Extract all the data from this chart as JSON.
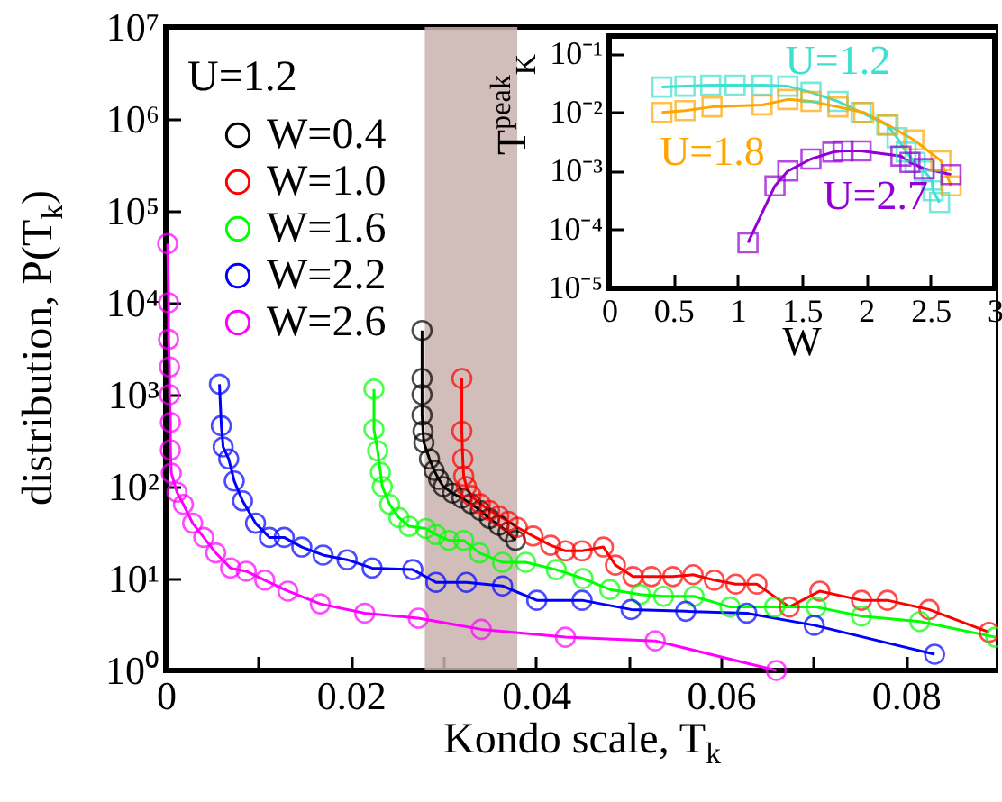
{
  "chart_data": [
    {
      "type": "line",
      "xlabel": "Kondo scale, T$_{k}$",
      "ylabel": "distribution, P(T$_{k}$)",
      "annotations": [
        "U=1.2"
      ],
      "xlim": [
        0,
        0.09
      ],
      "xticks": [
        0,
        {
          "value": 0.01,
          "label": null
        },
        0.02,
        {
          "value": 0.03,
          "label": null
        },
        0.04,
        {
          "value": 0.05,
          "label": null
        },
        0.06,
        {
          "value": 0.07,
          "label": null
        },
        0.08
      ],
      "ylim": [
        1,
        10000000
      ],
      "yticks": [
        {
          "value": 1,
          "label": "10⁰"
        },
        {
          "value": 10,
          "label": "10¹"
        },
        {
          "value": 100,
          "label": "10²"
        },
        {
          "value": 1000,
          "label": "10³"
        },
        {
          "value": 10000,
          "label": "10⁴"
        },
        {
          "value": 100000,
          "label": "10⁵"
        },
        {
          "value": 1000000,
          "label": "10⁶"
        },
        {
          "value": 10000000,
          "label": "10⁷"
        }
      ],
      "log": "y",
      "grid": false,
      "legend": "top left",
      "marker": "circle",
      "line_style": "solid",
      "bands": [
        {
          "axis": "x",
          "from": 0.028,
          "to": 0.038,
          "color": "#c9b1ad"
        }
      ],
      "series": [
        {
          "name": "W=0.4",
          "color": "#000000",
          "x": [
            0.0277,
            0.0277,
            0.0277,
            0.0277,
            0.0278,
            0.0279,
            0.0285,
            0.029,
            0.0295,
            0.03,
            0.031,
            0.032,
            0.033,
            0.034,
            0.035,
            0.036,
            0.037,
            0.0378
          ],
          "values": [
            5000,
            1500,
            1000,
            600,
            400,
            300,
            200,
            150,
            120,
            100,
            85,
            75,
            65,
            55,
            45,
            38,
            32,
            26
          ]
        },
        {
          "name": "W=1.0",
          "color": "#ff0000",
          "x": [
            0.032,
            0.032,
            0.0321,
            0.0322,
            0.0325,
            0.033,
            0.034,
            0.035,
            0.036,
            0.037,
            0.038,
            0.0397,
            0.0416,
            0.0432,
            0.045,
            0.0473,
            0.0486,
            0.0505,
            0.0525,
            0.0548,
            0.057,
            0.0593,
            0.0616,
            0.0639,
            0.0674,
            0.0707,
            0.0752,
            0.078,
            0.0825,
            0.089
          ],
          "values": [
            1500,
            400,
            200,
            130,
            100,
            80,
            65,
            55,
            48,
            42,
            36,
            29,
            23,
            20,
            20,
            22,
            14,
            10.5,
            10.5,
            10.5,
            11,
            9.6,
            8.7,
            8.7,
            4.9,
            7.3,
            5.8,
            5.8,
            4.6,
            2.6
          ]
        },
        {
          "name": "W=1.6",
          "color": "#00ff00",
          "x": [
            0.0225,
            0.0225,
            0.0229,
            0.0232,
            0.0234,
            0.0242,
            0.0252,
            0.0263,
            0.0281,
            0.0292,
            0.0306,
            0.0322,
            0.0339,
            0.0364,
            0.0389,
            0.0422,
            0.0451,
            0.048,
            0.0513,
            0.0538,
            0.0571,
            0.061,
            0.0658,
            0.0703,
            0.0752,
            0.0815,
            0.0897
          ],
          "values": [
            1150,
            420,
            245,
            143,
            100,
            64,
            46,
            37,
            35,
            30,
            26,
            26,
            19,
            15,
            15,
            12.5,
            10,
            7.6,
            6.7,
            6.4,
            6.4,
            4.9,
            4.9,
            4.9,
            3.9,
            3.4,
            2.3
          ]
        },
        {
          "name": "W=2.2",
          "color": "#0000ff",
          "x": [
            0.0058,
            0.006,
            0.0062,
            0.0068,
            0.0074,
            0.0083,
            0.0097,
            0.0112,
            0.0128,
            0.0147,
            0.017,
            0.0196,
            0.0223,
            0.0267,
            0.0292,
            0.0325,
            0.0364,
            0.0401,
            0.045,
            0.0503,
            0.0562,
            0.0628,
            0.0701,
            0.0831
          ],
          "values": [
            1300,
            460,
            270,
            200,
            115,
            70,
            40,
            28,
            28,
            22,
            18,
            16,
            13,
            12.5,
            9.1,
            9.1,
            8.3,
            5.8,
            5.8,
            4.6,
            4.4,
            4.2,
            3.1,
            1.5
          ]
        },
        {
          "name": "W=2.6",
          "color": "#ff00ff",
          "x": [
            0.0002,
            0.0003,
            0.0003,
            0.0004,
            0.0004,
            0.0005,
            0.0005,
            0.0006,
            0.0012,
            0.0019,
            0.0029,
            0.0041,
            0.0054,
            0.007,
            0.0087,
            0.0107,
            0.0132,
            0.0167,
            0.0215,
            0.0273,
            0.0341,
            0.0432,
            0.0529,
            0.066
          ],
          "values": [
            44000,
            10000,
            4000,
            2000,
            1000,
            500,
            250,
            140,
            87,
            64,
            40,
            28,
            19,
            13,
            12,
            9.6,
            7.3,
            5.3,
            4.2,
            3.7,
            2.8,
            2.3,
            2.1,
            1
          ]
        }
      ]
    },
    {
      "type": "line",
      "xlabel": "W",
      "ylabel": "T$^{peak}$$_{K}$",
      "xlim": [
        0,
        3
      ],
      "xticks": [
        0,
        0.5,
        1,
        1.5,
        2,
        2.5,
        3
      ],
      "ylim": [
        1e-05,
        0.2
      ],
      "yticks": [
        {
          "value": 1e-05,
          "label": "10⁻⁵"
        },
        {
          "value": 0.0001,
          "label": "10⁻⁴"
        },
        {
          "value": 0.001,
          "label": "10⁻³"
        },
        {
          "value": 0.01,
          "label": "10⁻²"
        },
        {
          "value": 0.1,
          "label": "10⁻¹"
        }
      ],
      "log": "y",
      "grid": false,
      "marker": "square",
      "line_style": "solid",
      "series": [
        {
          "name": "U=1.2",
          "color": "#40e0d0",
          "x": [
            0.41,
            0.59,
            0.79,
            0.98,
            1.19,
            1.39,
            1.57,
            1.78,
            1.96,
            2.16,
            2.24,
            2.31,
            2.38,
            2.45,
            2.51,
            2.52,
            2.57
          ],
          "values": [
            0.027,
            0.028,
            0.029,
            0.029,
            0.029,
            0.028,
            0.022,
            0.0154,
            0.01,
            0.0061,
            0.0037,
            0.0021,
            0.0014,
            0.001,
            0.0007,
            0.00046,
            0.00029
          ]
        },
        {
          "name": "U=1.8",
          "color": "#ffa500",
          "x": [
            0.41,
            0.59,
            0.8,
            1.19,
            1.39,
            1.57,
            1.78,
            1.98,
            2.17,
            2.37,
            2.58,
            2.66
          ],
          "values": [
            0.01,
            0.0107,
            0.0124,
            0.0134,
            0.0166,
            0.0154,
            0.0124,
            0.01,
            0.0061,
            0.0034,
            0.0015,
            0.00056
          ]
        },
        {
          "name": "U=2.7",
          "color": "#9400d3",
          "x": [
            1.08,
            1.29,
            1.39,
            1.57,
            1.74,
            1.82,
            1.96,
            2.27,
            2.34,
            2.45,
            2.66
          ],
          "values": [
            6e-05,
            0.00056,
            0.001,
            0.0016,
            0.0021,
            0.0022,
            0.0022,
            0.0018,
            0.0014,
            0.0011,
            0.00087
          ]
        }
      ]
    }
  ]
}
